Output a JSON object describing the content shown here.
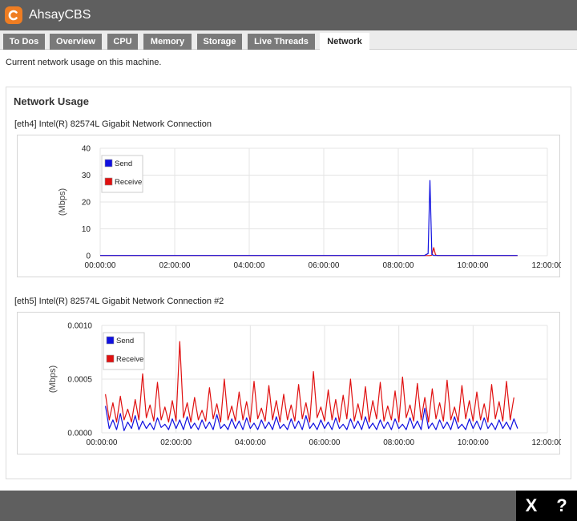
{
  "app": {
    "title": "AhsayCBS"
  },
  "tabs": [
    {
      "label": "To Dos",
      "active": false
    },
    {
      "label": "Overview",
      "active": false
    },
    {
      "label": "CPU",
      "active": false
    },
    {
      "label": "Memory",
      "active": false
    },
    {
      "label": "Storage",
      "active": false
    },
    {
      "label": "Live Threads",
      "active": false
    },
    {
      "label": "Network",
      "active": true
    }
  ],
  "page": {
    "description": "Current network usage on this machine."
  },
  "panel": {
    "title": "Network Usage"
  },
  "colors": {
    "send": "#1010e0",
    "receive": "#e01010",
    "titlebar": "#5f5f5f",
    "accent": "#ef7d22"
  },
  "actions": {
    "close_label": "X",
    "help_label": "?"
  },
  "chart_data": [
    {
      "type": "line",
      "title": "[eth4] Intel(R) 82574L Gigabit Network Connection",
      "ylabel": "(Mbps)",
      "xlabel": "",
      "xlim": [
        0,
        12
      ],
      "ylim": [
        0,
        40
      ],
      "x_ticks": [
        "00:00:00",
        "02:00:00",
        "04:00:00",
        "06:00:00",
        "08:00:00",
        "10:00:00",
        "12:00:00"
      ],
      "y_ticks": [
        "0",
        "10",
        "20",
        "30",
        "40"
      ],
      "legend": "top-left",
      "grid": true,
      "series": [
        {
          "name": "Send",
          "color": "#1010e0",
          "x": [
            0,
            8.7,
            8.8,
            8.85,
            8.9,
            8.95,
            9.0,
            11.2
          ],
          "values": [
            0.1,
            0.1,
            0.8,
            28,
            0.5,
            0.1,
            0.1,
            0.1
          ]
        },
        {
          "name": "Receive",
          "color": "#e01010",
          "x": [
            0,
            8.85,
            8.9,
            8.95,
            9.0,
            9.05,
            11.2
          ],
          "values": [
            0.05,
            0.05,
            0.2,
            3,
            0.3,
            0.05,
            0.05
          ]
        }
      ]
    },
    {
      "type": "line",
      "title": "[eth5] Intel(R) 82574L Gigabit Network Connection #2",
      "ylabel": "(Mbps)",
      "xlabel": "",
      "xlim": [
        0,
        12
      ],
      "ylim": [
        0,
        0.001
      ],
      "x_ticks": [
        "00:00:00",
        "02:00:00",
        "04:00:00",
        "06:00:00",
        "08:00:00",
        "10:00:00",
        "12:00:00"
      ],
      "y_ticks": [
        "0.0000",
        "0.0005",
        "0.0010"
      ],
      "legend": "top-left",
      "grid": true,
      "series": [
        {
          "name": "Send",
          "color": "#1010e0",
          "x_start": 0.1,
          "x_step": 0.1,
          "values": [
            0.00025,
            4e-05,
            0.00012,
            3e-05,
            0.00018,
            2e-05,
            0.0001,
            4e-05,
            0.00016,
            3e-05,
            0.00011,
            4e-05,
            9e-05,
            3e-05,
            0.00014,
            5e-05,
            8e-05,
            3e-05,
            0.00013,
            4e-05,
            0.00012,
            3e-05,
            0.00015,
            4e-05,
            9e-05,
            3e-05,
            0.00012,
            4e-05,
            0.0001,
            3e-05,
            0.00017,
            4e-05,
            8e-05,
            3e-05,
            0.00013,
            4e-05,
            0.00011,
            3e-05,
            0.00014,
            4e-05,
            9e-05,
            3e-05,
            0.00012,
            4e-05,
            0.0001,
            3e-05,
            0.00015,
            4e-05,
            8e-05,
            3e-05,
            0.00013,
            4e-05,
            0.00011,
            3e-05,
            0.00016,
            4e-05,
            9e-05,
            3e-05,
            0.00012,
            4e-05,
            0.0001,
            3e-05,
            0.00014,
            4e-05,
            8e-05,
            3e-05,
            0.00013,
            4e-05,
            0.00011,
            3e-05,
            0.00015,
            4e-05,
            9e-05,
            3e-05,
            0.00012,
            4e-05,
            0.0001,
            3e-05,
            0.00013,
            4e-05,
            8e-05,
            3e-05,
            0.00014,
            4e-05,
            0.00011,
            3e-05,
            0.00023,
            4e-05,
            9e-05,
            3e-05,
            0.00012,
            4e-05,
            0.0001,
            3e-05,
            0.00015,
            4e-05,
            8e-05,
            3e-05,
            0.00013,
            4e-05,
            0.00011,
            3e-05,
            0.00014,
            4e-05,
            9e-05,
            3e-05,
            0.00012,
            4e-05,
            0.0001,
            3e-05,
            0.00013,
            4e-05
          ]
        },
        {
          "name": "Receive",
          "color": "#e01010",
          "x_start": 0.1,
          "x_step": 0.1,
          "values": [
            0.00036,
            0.00012,
            0.00028,
            0.0001,
            0.00034,
            0.00012,
            0.00022,
            0.0001,
            0.00031,
            0.00012,
            0.00055,
            0.00014,
            0.00026,
            0.00011,
            0.00047,
            0.00012,
            0.00024,
            0.0001,
            0.0003,
            0.00011,
            0.00085,
            0.00014,
            0.00028,
            0.0001,
            0.00033,
            0.00012,
            0.00021,
            0.00011,
            0.00042,
            0.00013,
            0.00027,
            0.0001,
            0.0005,
            0.00012,
            0.00025,
            0.00011,
            0.00038,
            0.00012,
            0.00029,
            0.0001,
            0.00048,
            0.00013,
            0.00023,
            0.00011,
            0.00044,
            0.00012,
            0.0003,
            0.0001,
            0.00036,
            0.00012,
            0.00026,
            0.00011,
            0.00045,
            0.00013,
            0.00028,
            0.0001,
            0.00057,
            0.00014,
            0.00024,
            0.00011,
            0.0004,
            0.00012,
            0.00031,
            0.0001,
            0.00035,
            0.00013,
            0.0005,
            0.00011,
            0.00027,
            0.00012,
            0.00043,
            0.0001,
            0.0003,
            0.00013,
            0.00047,
            0.00011,
            0.00025,
            0.00012,
            0.00039,
            0.0001,
            0.00052,
            0.00014,
            0.00026,
            0.00011,
            0.00046,
            0.00012,
            0.00033,
            0.0001,
            0.00041,
            0.00013,
            0.00028,
            0.00011,
            0.00049,
            0.00012,
            0.00024,
            0.0001,
            0.00044,
            0.00013,
            0.0003,
            0.00011,
            0.00038,
            0.00012,
            0.00027,
            0.0001,
            0.00045,
            0.00013,
            0.00029,
            0.00011,
            0.00048,
            0.00012,
            0.00033
          ]
        }
      ]
    }
  ]
}
